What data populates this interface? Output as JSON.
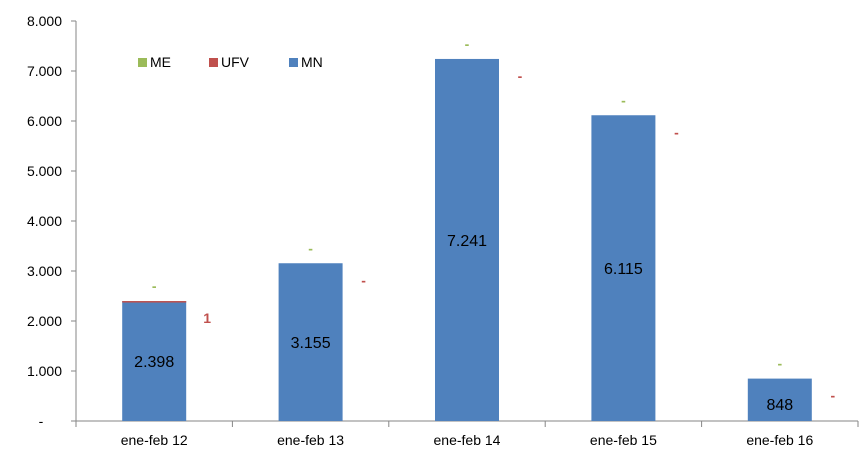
{
  "chart_data": {
    "type": "bar",
    "stacked": true,
    "categories": [
      "ene-feb 12",
      "ene-feb 13",
      "ene-feb 14",
      "ene-feb 15",
      "ene-feb 16"
    ],
    "series": [
      {
        "name": "ME",
        "color": "#9bbb59",
        "values": [
          0,
          0,
          0,
          0,
          0
        ],
        "labels": [
          "-",
          "-",
          "-",
          "-",
          "-"
        ]
      },
      {
        "name": "UFV",
        "color": "#c0504d",
        "values": [
          1,
          0,
          0,
          0,
          0
        ],
        "labels": [
          "1",
          "-",
          "-",
          "-",
          "-"
        ]
      },
      {
        "name": "MN",
        "color": "#4f81bd",
        "values": [
          2398,
          3155,
          7241,
          6115,
          848
        ],
        "labels": [
          "2.398",
          "3.155",
          "7.241",
          "6.115",
          "848"
        ]
      }
    ],
    "yticks": [
      {
        "value": 0,
        "label": "-"
      },
      {
        "value": 1000,
        "label": "1.000"
      },
      {
        "value": 2000,
        "label": "2.000"
      },
      {
        "value": 3000,
        "label": "3.000"
      },
      {
        "value": 4000,
        "label": "4.000"
      },
      {
        "value": 5000,
        "label": "5.000"
      },
      {
        "value": 6000,
        "label": "6.000"
      },
      {
        "value": 7000,
        "label": "7.000"
      },
      {
        "value": 8000,
        "label": "8.000"
      }
    ],
    "ylim": [
      0,
      8000
    ],
    "grid": false,
    "legend_position": "top-left"
  }
}
